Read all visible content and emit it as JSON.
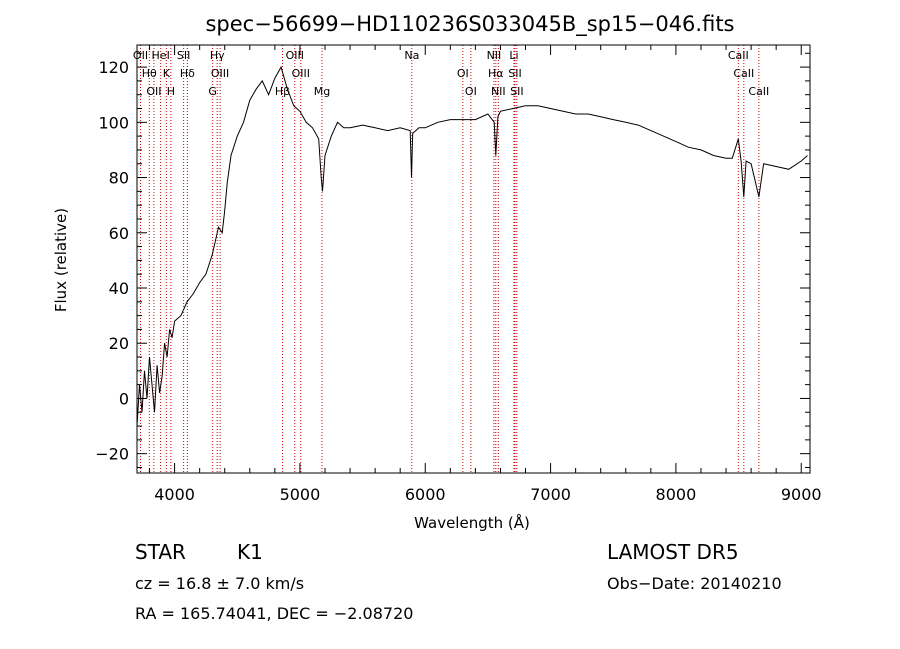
{
  "chart_data": {
    "type": "line",
    "title": "spec−56699−HD110236S033045B_sp15−046.fits",
    "xlabel": "Wavelength (Å)",
    "ylabel": "Flux (relative)",
    "xlim": [
      3700,
      9070
    ],
    "ylim": [
      -27,
      128
    ],
    "xticks": [
      4000,
      5000,
      6000,
      7000,
      8000,
      9000
    ],
    "yticks": [
      -20,
      0,
      20,
      40,
      60,
      80,
      100,
      120
    ],
    "ytick_labels": [
      "−20",
      "0",
      "20",
      "40",
      "60",
      "80",
      "100",
      "120"
    ],
    "series": [
      {
        "color": "#000000",
        "x": [
          3700,
          3720,
          3740,
          3760,
          3780,
          3800,
          3820,
          3840,
          3860,
          3880,
          3900,
          3920,
          3940,
          3960,
          3980,
          4000,
          4050,
          4100,
          4150,
          4200,
          4250,
          4300,
          4350,
          4380,
          4400,
          4420,
          4450,
          4500,
          4550,
          4600,
          4650,
          4700,
          4750,
          4800,
          4850,
          4900,
          4950,
          5000,
          5050,
          5100,
          5150,
          5170,
          5180,
          5200,
          5250,
          5300,
          5350,
          5400,
          5500,
          5600,
          5700,
          5800,
          5880,
          5890,
          5900,
          5950,
          6000,
          6100,
          6200,
          6300,
          6400,
          6500,
          6550,
          6563,
          6580,
          6600,
          6700,
          6800,
          6900,
          7000,
          7100,
          7200,
          7300,
          7400,
          7500,
          7600,
          7700,
          7800,
          7900,
          8000,
          8100,
          8200,
          8300,
          8400,
          8450,
          8498,
          8520,
          8542,
          8560,
          8600,
          8662,
          8700,
          8800,
          8900,
          9000,
          9050
        ],
        "y": [
          -10,
          5,
          -5,
          10,
          0,
          15,
          5,
          -5,
          12,
          2,
          8,
          20,
          15,
          25,
          22,
          28,
          30,
          35,
          38,
          42,
          45,
          52,
          62,
          60,
          68,
          78,
          88,
          95,
          100,
          108,
          112,
          115,
          110,
          116,
          120,
          112,
          106,
          104,
          100,
          98,
          94,
          80,
          75,
          88,
          95,
          100,
          98,
          98,
          99,
          98,
          97,
          98,
          97,
          80,
          96,
          98,
          98,
          100,
          101,
          101,
          101,
          103,
          100,
          88,
          102,
          104,
          105,
          106,
          106,
          105,
          104,
          103,
          103,
          102,
          101,
          100,
          99,
          97,
          95,
          93,
          91,
          90,
          88,
          87,
          87,
          94,
          86,
          73,
          86,
          85,
          73,
          85,
          84,
          83,
          86,
          88
        ]
      }
    ],
    "lines": [
      {
        "x": 3728,
        "labels": [
          "OII"
        ]
      },
      {
        "x": 3798,
        "labels": [
          "Hθ"
        ]
      },
      {
        "x": 3835,
        "labels": [
          "OII"
        ]
      },
      {
        "x": 3889,
        "labels": [
          "HeI"
        ]
      },
      {
        "x": 3934,
        "labels": [
          "K"
        ]
      },
      {
        "x": 3970,
        "labels": [
          "H"
        ]
      },
      {
        "x": 4072,
        "labels": [
          "SII"
        ]
      },
      {
        "x": 4102,
        "labels": [
          "Hδ"
        ]
      },
      {
        "x": 4304,
        "labels": [
          "G"
        ]
      },
      {
        "x": 4340,
        "labels": [
          "Hγ"
        ]
      },
      {
        "x": 4363,
        "labels": [
          "OIII"
        ]
      },
      {
        "x": 4861,
        "labels": [
          "Hβ"
        ]
      },
      {
        "x": 4959,
        "labels": [
          "OIII"
        ]
      },
      {
        "x": 5007,
        "labels": [
          "OIII"
        ]
      },
      {
        "x": 5176,
        "labels": [
          "Mg"
        ]
      },
      {
        "x": 5893,
        "labels": [
          "Na"
        ]
      },
      {
        "x": 6300,
        "labels": [
          "OI"
        ]
      },
      {
        "x": 6364,
        "labels": [
          "OI"
        ]
      },
      {
        "x": 6548,
        "labels": [
          "NII"
        ]
      },
      {
        "x": 6563,
        "labels": [
          "Hα"
        ]
      },
      {
        "x": 6583,
        "labels": [
          "NII"
        ]
      },
      {
        "x": 6708,
        "labels": [
          "Li"
        ]
      },
      {
        "x": 6716,
        "labels": [
          "SII"
        ]
      },
      {
        "x": 6731,
        "labels": [
          "SII"
        ]
      },
      {
        "x": 8498,
        "labels": [
          "CaII"
        ]
      },
      {
        "x": 8542,
        "labels": [
          "CaII"
        ]
      },
      {
        "x": 8662,
        "labels": [
          "CaII"
        ]
      }
    ]
  },
  "info": {
    "class_label": "STAR",
    "subclass": "K1",
    "cz": "cz = 16.8 ± 7.0 km/s",
    "coords": "RA = 165.74041, DEC =  −2.08720",
    "survey": "LAMOST DR5",
    "obs_date": "Obs−Date: 20140210"
  }
}
